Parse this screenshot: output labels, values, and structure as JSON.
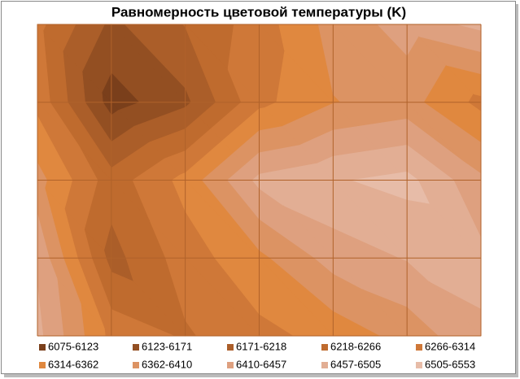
{
  "chart_data": {
    "type": "contour",
    "title": "Равномерность цветовой температуры (K)",
    "grid_values": [
      [
        6280,
        6160,
        6220,
        6290,
        6380,
        6430,
        6470
      ],
      [
        6300,
        6100,
        6160,
        6300,
        6360,
        6380,
        6300
      ],
      [
        6380,
        6240,
        6330,
        6470,
        6500,
        6520,
        6420
      ],
      [
        6450,
        6200,
        6290,
        6350,
        6430,
        6460,
        6470
      ],
      [
        6470,
        6300,
        6260,
        6300,
        6330,
        6380,
        6450
      ]
    ],
    "bands": [
      {
        "label": "6075-6123",
        "from": 6075,
        "to": 6123,
        "color": "#7a3f1b"
      },
      {
        "label": "6123-6171",
        "from": 6123,
        "to": 6171,
        "color": "#934f22"
      },
      {
        "label": "6171-6218",
        "from": 6171,
        "to": 6218,
        "color": "#ab5e29"
      },
      {
        "label": "6218-6266",
        "from": 6218,
        "to": 6266,
        "color": "#bf6b2e"
      },
      {
        "label": "6266-6314",
        "from": 6266,
        "to": 6314,
        "color": "#cf7838"
      },
      {
        "label": "6314-6362",
        "from": 6314,
        "to": 6362,
        "color": "#e0883f"
      },
      {
        "label": "6362-6410",
        "from": 6362,
        "to": 6410,
        "color": "#dc9363"
      },
      {
        "label": "6410-6457",
        "from": 6410,
        "to": 6457,
        "color": "#dea07f"
      },
      {
        "label": "6457-6505",
        "from": 6457,
        "to": 6505,
        "color": "#e2ae94"
      },
      {
        "label": "6505-6553",
        "from": 6505,
        "to": 6553,
        "color": "#e7bca8"
      }
    ],
    "grid": true
  }
}
